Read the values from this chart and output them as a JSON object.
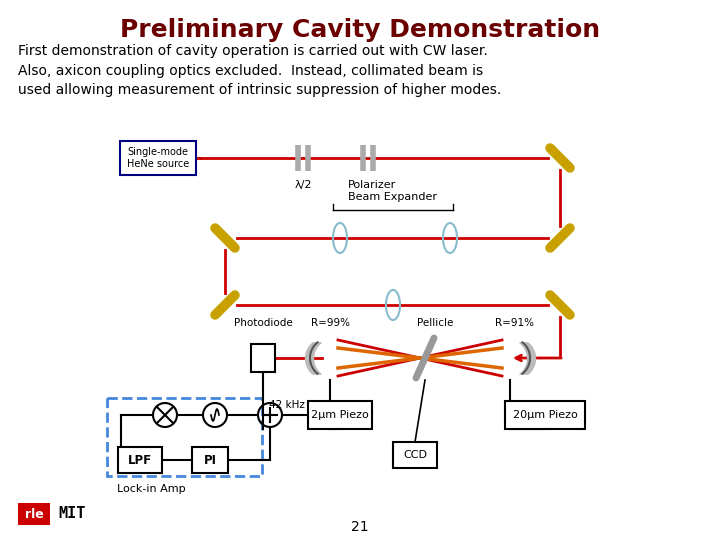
{
  "title": "Preliminary Cavity Demonstration",
  "title_color": "#6B0000",
  "title_fontsize": 18,
  "body_text": "First demonstration of cavity operation is carried out with CW laser.\nAlso, axicon coupling optics excluded.  Instead, collimated beam is\nused allowing measurement of intrinsic suppression of higher modes.",
  "body_fontsize": 10,
  "bg_color": "#ffffff",
  "page_number": "21",
  "labels": {
    "single_mode": "Single-mode\nHeNe source",
    "lambda2": "λ/2",
    "polarizer": "Polarizer",
    "beam_expander": "Beam Expander",
    "photodiode": "Photodiode",
    "r99": "R=99%",
    "pellicle": "Pellicle",
    "r91": "R=91%",
    "42khz": "42 kHz",
    "piezo2": "2µm Piezo",
    "piezo20": "20µm Piezo",
    "ccd": "CCD",
    "lpf": "LPF",
    "pi": "PI",
    "lockin": "Lock-in Amp"
  },
  "colors": {
    "red_beam": "#cc0000",
    "mirror_gold": "#C8A000",
    "mirror_gray": "#888888",
    "black": "#000000",
    "blue_dashed": "#4488DD",
    "orange_beam": "#DD6600",
    "lens_color": "#88BBCC"
  }
}
